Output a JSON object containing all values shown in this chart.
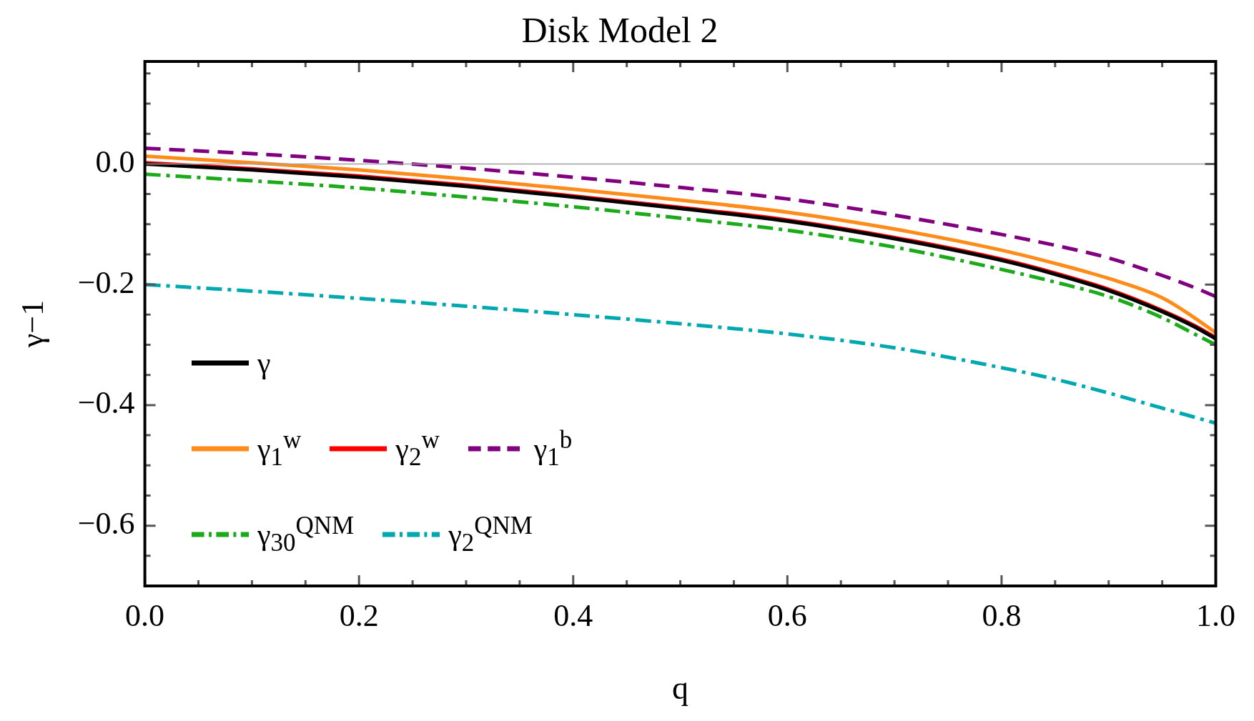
{
  "chart_data": {
    "type": "line",
    "title": "Disk Model 2",
    "xlabel": "q",
    "ylabel": "γ−1",
    "x": [
      0,
      0.1,
      0.2,
      0.3,
      0.4,
      0.5,
      0.6,
      0.7,
      0.8,
      0.85,
      0.9,
      0.95,
      0.98,
      1.0
    ],
    "series": [
      {
        "name": "γ",
        "color": "#000000",
        "line_style": "solid",
        "values": [
          0,
          -0.01,
          -0.022,
          -0.037,
          -0.055,
          -0.074,
          -0.095,
          -0.124,
          -0.16,
          -0.183,
          -0.21,
          -0.245,
          -0.27,
          -0.29
        ]
      },
      {
        "name": "γ$_{1}$$^{w}$",
        "color": "#ff8c1a",
        "line_style": "solid",
        "values": [
          0.013,
          0.002,
          -0.01,
          -0.025,
          -0.042,
          -0.06,
          -0.08,
          -0.108,
          -0.143,
          -0.165,
          -0.19,
          -0.222,
          -0.255,
          -0.28
        ]
      },
      {
        "name": "γ$_{2}$$^{w}$",
        "color": "#ff0000",
        "line_style": "solid",
        "values": [
          0.002,
          -0.008,
          -0.02,
          -0.035,
          -0.053,
          -0.072,
          -0.093,
          -0.122,
          -0.158,
          -0.181,
          -0.208,
          -0.243,
          -0.268,
          -0.288
        ]
      },
      {
        "name": "γ$_{1}$$^{b}$",
        "color": "#800080",
        "line_style": "dashed",
        "values": [
          0.026,
          0.017,
          0.006,
          -0.007,
          -0.022,
          -0.039,
          -0.058,
          -0.085,
          -0.117,
          -0.135,
          -0.156,
          -0.185,
          -0.205,
          -0.22
        ]
      },
      {
        "name": "γ$_{30}$$^{QNM}$",
        "color": "#1aaa1a",
        "line_style": "dashdot",
        "values": [
          -0.017,
          -0.028,
          -0.04,
          -0.055,
          -0.071,
          -0.09,
          -0.11,
          -0.138,
          -0.175,
          -0.196,
          -0.22,
          -0.255,
          -0.282,
          -0.3
        ]
      },
      {
        "name": "γ$_{2}$$^{QNM}$",
        "color": "#00a8b0",
        "line_style": "dashdot",
        "values": [
          -0.2,
          -0.211,
          -0.223,
          -0.236,
          -0.25,
          -0.265,
          -0.282,
          -0.305,
          -0.338,
          -0.357,
          -0.38,
          -0.405,
          -0.42,
          -0.43
        ]
      }
    ],
    "xlim": [
      0,
      1
    ],
    "ylim": [
      -0.7,
      0.17
    ],
    "xticks": [
      {
        "value": 0,
        "label": "0.0"
      },
      {
        "value": 0.05,
        "label": null
      },
      {
        "value": 0.1,
        "label": null
      },
      {
        "value": 0.15,
        "label": null
      },
      {
        "value": 0.2,
        "label": "0.2"
      },
      {
        "value": 0.25,
        "label": null
      },
      {
        "value": 0.3,
        "label": null
      },
      {
        "value": 0.35,
        "label": null
      },
      {
        "value": 0.4,
        "label": "0.4"
      },
      {
        "value": 0.45,
        "label": null
      },
      {
        "value": 0.5,
        "label": null
      },
      {
        "value": 0.55,
        "label": null
      },
      {
        "value": 0.6,
        "label": "0.6"
      },
      {
        "value": 0.65,
        "label": null
      },
      {
        "value": 0.7,
        "label": null
      },
      {
        "value": 0.75,
        "label": null
      },
      {
        "value": 0.8,
        "label": "0.8"
      },
      {
        "value": 0.85,
        "label": null
      },
      {
        "value": 0.9,
        "label": null
      },
      {
        "value": 0.95,
        "label": null
      },
      {
        "value": 1,
        "label": "1.0"
      }
    ],
    "yticks": [
      {
        "value": -0.65,
        "label": null
      },
      {
        "value": -0.6,
        "label": "−0.6"
      },
      {
        "value": -0.55,
        "label": null
      },
      {
        "value": -0.5,
        "label": null
      },
      {
        "value": -0.45,
        "label": null
      },
      {
        "value": -0.4,
        "label": "−0.4"
      },
      {
        "value": -0.35,
        "label": null
      },
      {
        "value": -0.3,
        "label": null
      },
      {
        "value": -0.25,
        "label": null
      },
      {
        "value": -0.2,
        "label": "−0.2"
      },
      {
        "value": -0.15,
        "label": null
      },
      {
        "value": -0.1,
        "label": null
      },
      {
        "value": -0.05,
        "label": null
      },
      {
        "value": 0,
        "label": "0.0"
      },
      {
        "value": 0.05,
        "label": null
      },
      {
        "value": 0.1,
        "label": null
      },
      {
        "value": 0.15,
        "label": null
      }
    ],
    "ref_lines": [
      {
        "axis": "y",
        "value": 0,
        "color": "#a0a0a0"
      }
    ],
    "grid": false,
    "legend": "left",
    "marker": "none"
  }
}
